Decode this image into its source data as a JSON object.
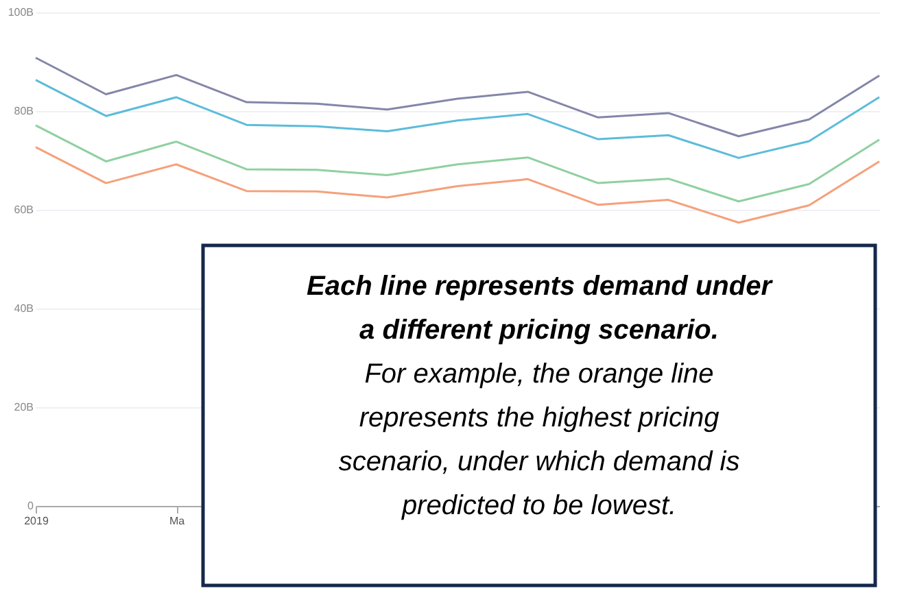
{
  "chart_data": {
    "type": "line",
    "categories": [
      "2019",
      null,
      "Ma",
      null,
      null,
      null,
      null,
      null,
      null,
      null,
      null,
      null,
      null
    ],
    "series": [
      {
        "color": "#8486a8",
        "values": [
          90.8,
          83.4,
          87.3,
          81.8,
          81.5,
          80.3,
          82.5,
          83.9,
          78.7,
          79.6,
          74.9,
          78.3,
          87.2
        ]
      },
      {
        "color": "#5bbcd9",
        "values": [
          86.3,
          79.0,
          82.8,
          77.2,
          76.9,
          75.9,
          78.1,
          79.4,
          74.3,
          75.1,
          70.5,
          73.9,
          82.8
        ]
      },
      {
        "color": "#8fd0a0",
        "values": [
          77.1,
          69.8,
          73.8,
          68.2,
          68.1,
          67.0,
          69.2,
          70.6,
          65.4,
          66.3,
          61.7,
          65.2,
          74.2
        ]
      },
      {
        "color": "#f5a07a",
        "values": [
          72.7,
          65.4,
          69.2,
          63.8,
          63.7,
          62.5,
          64.8,
          66.2,
          61.0,
          62.0,
          57.4,
          60.9,
          69.8
        ]
      }
    ],
    "ylim": [
      0,
      100
    ],
    "yticks": [
      0,
      {
        "value": 20,
        "label": "20B"
      },
      {
        "value": 40,
        "label": "40B"
      },
      {
        "value": 60,
        "label": "60B"
      },
      {
        "value": 80,
        "label": "80B"
      },
      {
        "value": 100,
        "label": "100B"
      }
    ],
    "grid": "y",
    "legend": false,
    "marker": "none",
    "line_style": "solid",
    "annotations": [
      "Each line represents demand under a different pricing scenario.",
      "For example, the orange line represents the highest pricing scenario, under which demand is predicted to be lowest."
    ]
  }
}
